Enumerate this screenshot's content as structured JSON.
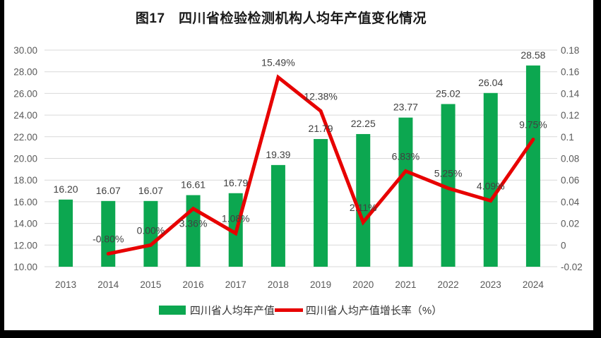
{
  "title": "图17　四川省检验检测机构人均年产值变化情况",
  "colors": {
    "frame": "#000000",
    "panel_background": "#ffffff",
    "bar": "#0CA750",
    "line": "#E70000",
    "grid": "#D9D9D9",
    "axis_text": "#595959",
    "data_label_text": "#404040",
    "title_text": "#1a1a1a",
    "legend_text": "#333333"
  },
  "chart_data": {
    "type": "bar+line",
    "title": "图17　四川省检验检测机构人均年产值变化情况",
    "categories": [
      "2013",
      "2014",
      "2015",
      "2016",
      "2017",
      "2018",
      "2019",
      "2020",
      "2021",
      "2022",
      "2023",
      "2024"
    ],
    "series": [
      {
        "name": "四川省人均年产值",
        "type": "bar",
        "axis": "left",
        "color": "#0CA750",
        "values": [
          16.2,
          16.07,
          16.07,
          16.61,
          16.79,
          19.39,
          21.79,
          22.25,
          23.77,
          25.02,
          26.04,
          28.58
        ],
        "labels": [
          "16.20",
          "16.07",
          "16.07",
          "16.61",
          "16.79",
          "19.39",
          "21.79",
          "22.25",
          "23.77",
          "25.02",
          "26.04",
          "28.58"
        ]
      },
      {
        "name": "四川省人均产值增长率（%）",
        "type": "line",
        "axis": "right",
        "color": "#E70000",
        "values": [
          null,
          -0.008,
          0.0,
          0.0336,
          0.0108,
          0.1549,
          0.1238,
          0.0211,
          0.0683,
          0.0525,
          0.0409,
          0.0975
        ],
        "labels": [
          null,
          "-0.80%",
          "0.00%",
          "3.36%",
          "1.08%",
          "15.49%",
          "12.38%",
          "2.11%",
          "6.83%",
          "5.25%",
          "4.09%",
          "9.75%"
        ],
        "label_side": [
          null,
          "above",
          "above",
          "below",
          "above",
          "above",
          "above",
          "above",
          "above",
          "above",
          "above",
          "above"
        ]
      }
    ],
    "left_axis": {
      "min": 10,
      "max": 30,
      "ticks": [
        "30.00",
        "28.00",
        "26.00",
        "24.00",
        "22.00",
        "20.00",
        "18.00",
        "16.00",
        "14.00",
        "12.00",
        "10.00"
      ]
    },
    "right_axis": {
      "min": -0.02,
      "max": 0.18,
      "ticks": [
        "0.18",
        "0.16",
        "0.14",
        "0.12",
        "0.1",
        "0.08",
        "0.06",
        "0.04",
        "0.02",
        "0",
        "-0.02"
      ]
    },
    "grid": true,
    "legend_position": "bottom",
    "legend": [
      {
        "label": "四川省人均年产值",
        "swatch": "bar",
        "color": "#0CA750"
      },
      {
        "label": "四川省人均产值增长率（%）",
        "swatch": "line",
        "color": "#E70000"
      }
    ]
  }
}
